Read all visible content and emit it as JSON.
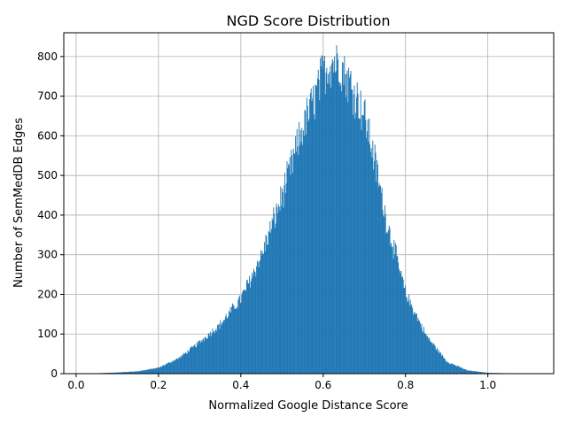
{
  "chart_data": {
    "type": "histogram",
    "title": "NGD Score Distribution",
    "xlabel": "Normalized Google Distance Score",
    "ylabel": "Number of SemMedDB Edges",
    "xlim": [
      -0.03,
      1.16
    ],
    "ylim": [
      0,
      860
    ],
    "xticks": [
      0.0,
      0.2,
      0.4,
      0.6,
      0.8,
      1.0
    ],
    "xtick_labels": [
      "0.0",
      "0.2",
      "0.4",
      "0.6",
      "0.8",
      "1.0"
    ],
    "yticks": [
      0,
      100,
      200,
      300,
      400,
      500,
      600,
      700,
      800
    ],
    "ytick_labels": [
      "0",
      "100",
      "200",
      "300",
      "400",
      "500",
      "600",
      "700",
      "800"
    ],
    "grid": true,
    "bar_color": "#1f77b4",
    "bin_start": 0.0,
    "bin_end": 1.12,
    "profile": {
      "x": [
        0.0,
        0.05,
        0.1,
        0.15,
        0.2,
        0.25,
        0.3,
        0.35,
        0.4,
        0.45,
        0.5,
        0.55,
        0.58,
        0.6,
        0.62,
        0.64,
        0.66,
        0.68,
        0.7,
        0.72,
        0.75,
        0.8,
        0.85,
        0.9,
        0.95,
        1.0,
        1.05,
        1.1,
        1.12
      ],
      "y": [
        0,
        1,
        3,
        6,
        15,
        40,
        80,
        125,
        190,
        300,
        450,
        620,
        700,
        760,
        790,
        785,
        740,
        700,
        650,
        560,
        400,
        200,
        95,
        30,
        8,
        2,
        1,
        0,
        0
      ]
    }
  }
}
